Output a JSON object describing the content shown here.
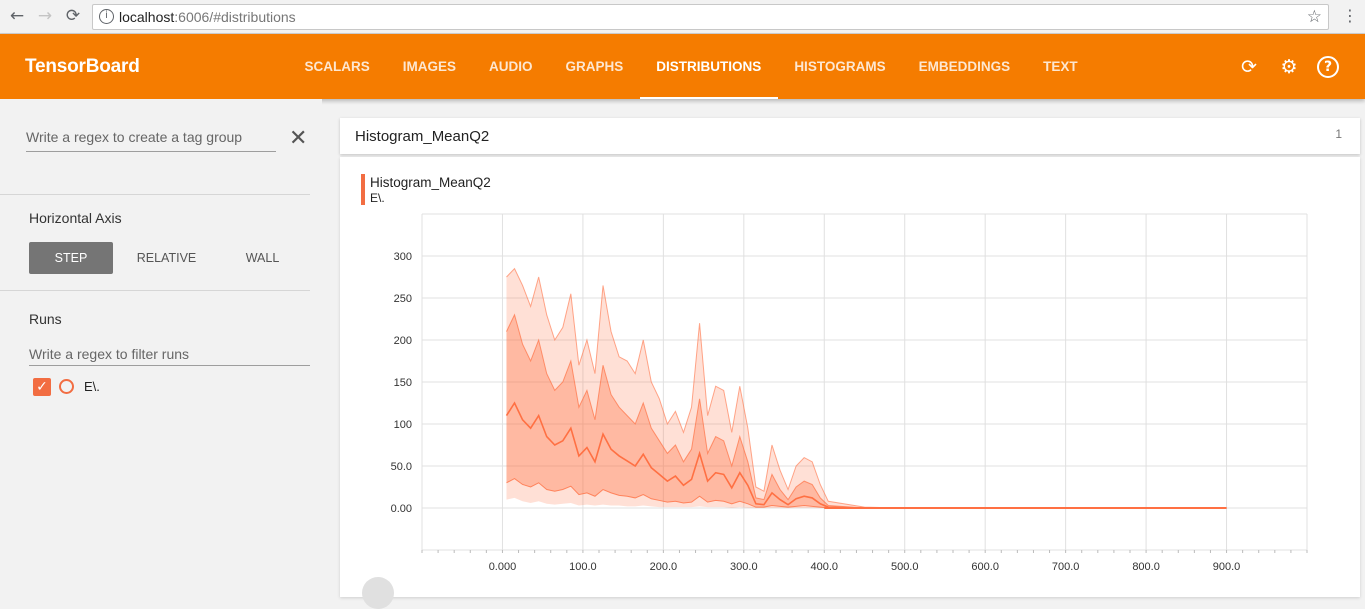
{
  "browser": {
    "back_icon": "←",
    "forward_icon": "→",
    "reload_icon": "⟳",
    "url_host": "localhost",
    "url_path": ":6006/#distributions",
    "star_icon": "☆",
    "menu_icon": "⋮"
  },
  "header": {
    "brand": "TensorBoard",
    "tabs": [
      {
        "label": "SCALARS"
      },
      {
        "label": "IMAGES"
      },
      {
        "label": "AUDIO"
      },
      {
        "label": "GRAPHS"
      },
      {
        "label": "DISTRIBUTIONS"
      },
      {
        "label": "HISTOGRAMS"
      },
      {
        "label": "EMBEDDINGS"
      },
      {
        "label": "TEXT"
      }
    ],
    "active_tab": "DISTRIBUTIONS",
    "accent_color": "#f57c00"
  },
  "sidebar": {
    "tag_regex_placeholder": "Write a regex to create a tag group",
    "horizontal_axis_label": "Horizontal Axis",
    "axis_options": [
      "STEP",
      "RELATIVE",
      "WALL"
    ],
    "axis_selected": "STEP",
    "runs_label": "Runs",
    "runs_filter_placeholder": "Write a regex to filter runs",
    "runs": [
      {
        "name": "E\\.",
        "checked": true,
        "color": "#f26d42"
      }
    ]
  },
  "main": {
    "group_title": "Histogram_MeanQ2",
    "group_count": "1",
    "chart_title": "Histogram_MeanQ2",
    "chart_run": "E\\."
  },
  "chart_data": {
    "type": "area",
    "title": "Histogram_MeanQ2",
    "xlabel": "",
    "ylabel": "",
    "xlim": [
      -100,
      1000
    ],
    "ylim": [
      -50,
      350
    ],
    "x_ticks": [
      "0.000",
      "100.0",
      "200.0",
      "300.0",
      "400.0",
      "500.0",
      "600.0",
      "700.0",
      "800.0",
      "900.0"
    ],
    "y_ticks": [
      "0.00",
      "50.0",
      "100",
      "150",
      "200",
      "250",
      "300"
    ],
    "grid": true,
    "series_color": "#ff7043",
    "series": [
      {
        "name": "E\\.",
        "x": [
          5,
          15,
          25,
          35,
          45,
          55,
          65,
          75,
          85,
          95,
          105,
          115,
          125,
          135,
          145,
          155,
          165,
          175,
          185,
          195,
          205,
          215,
          225,
          235,
          245,
          255,
          265,
          275,
          285,
          295,
          305,
          315,
          325,
          335,
          345,
          355,
          365,
          375,
          385,
          395,
          405,
          450,
          500,
          600,
          700,
          800,
          900
        ],
        "max": [
          275,
          285,
          265,
          240,
          275,
          230,
          200,
          215,
          255,
          170,
          200,
          160,
          265,
          210,
          180,
          175,
          160,
          200,
          150,
          130,
          100,
          115,
          90,
          120,
          220,
          110,
          145,
          140,
          90,
          145,
          95,
          25,
          20,
          75,
          45,
          22,
          50,
          60,
          55,
          28,
          8,
          1,
          0,
          0,
          0,
          0,
          0
        ],
        "p84": [
          210,
          230,
          195,
          175,
          200,
          160,
          140,
          150,
          175,
          120,
          140,
          105,
          170,
          135,
          120,
          110,
          100,
          125,
          95,
          80,
          65,
          75,
          55,
          70,
          130,
          65,
          85,
          80,
          50,
          85,
          55,
          12,
          10,
          40,
          22,
          10,
          25,
          32,
          28,
          12,
          3,
          0,
          0,
          0,
          0,
          0,
          0
        ],
        "median": [
          110,
          125,
          105,
          95,
          110,
          85,
          75,
          80,
          95,
          62,
          72,
          55,
          88,
          70,
          62,
          56,
          50,
          64,
          48,
          40,
          32,
          38,
          27,
          34,
          65,
          32,
          42,
          40,
          24,
          42,
          27,
          5,
          4,
          18,
          10,
          4,
          11,
          14,
          12,
          5,
          1,
          0,
          0,
          0,
          0,
          0,
          0
        ],
        "p16": [
          30,
          35,
          28,
          25,
          30,
          22,
          20,
          22,
          26,
          16,
          18,
          14,
          22,
          18,
          15,
          14,
          12,
          16,
          11,
          9,
          7,
          8,
          6,
          7,
          14,
          7,
          9,
          8,
          5,
          8,
          5,
          1,
          1,
          3,
          2,
          1,
          2,
          3,
          2,
          1,
          0,
          0,
          0,
          0,
          0,
          0,
          0
        ],
        "min": [
          10,
          12,
          8,
          6,
          8,
          5,
          4,
          5,
          6,
          3,
          4,
          3,
          4,
          3,
          3,
          2,
          2,
          3,
          2,
          1,
          1,
          1,
          1,
          1,
          2,
          1,
          1,
          1,
          0,
          1,
          0,
          0,
          0,
          0,
          0,
          0,
          0,
          0,
          0,
          0,
          0,
          0,
          0,
          0,
          0,
          0,
          0
        ]
      }
    ]
  }
}
